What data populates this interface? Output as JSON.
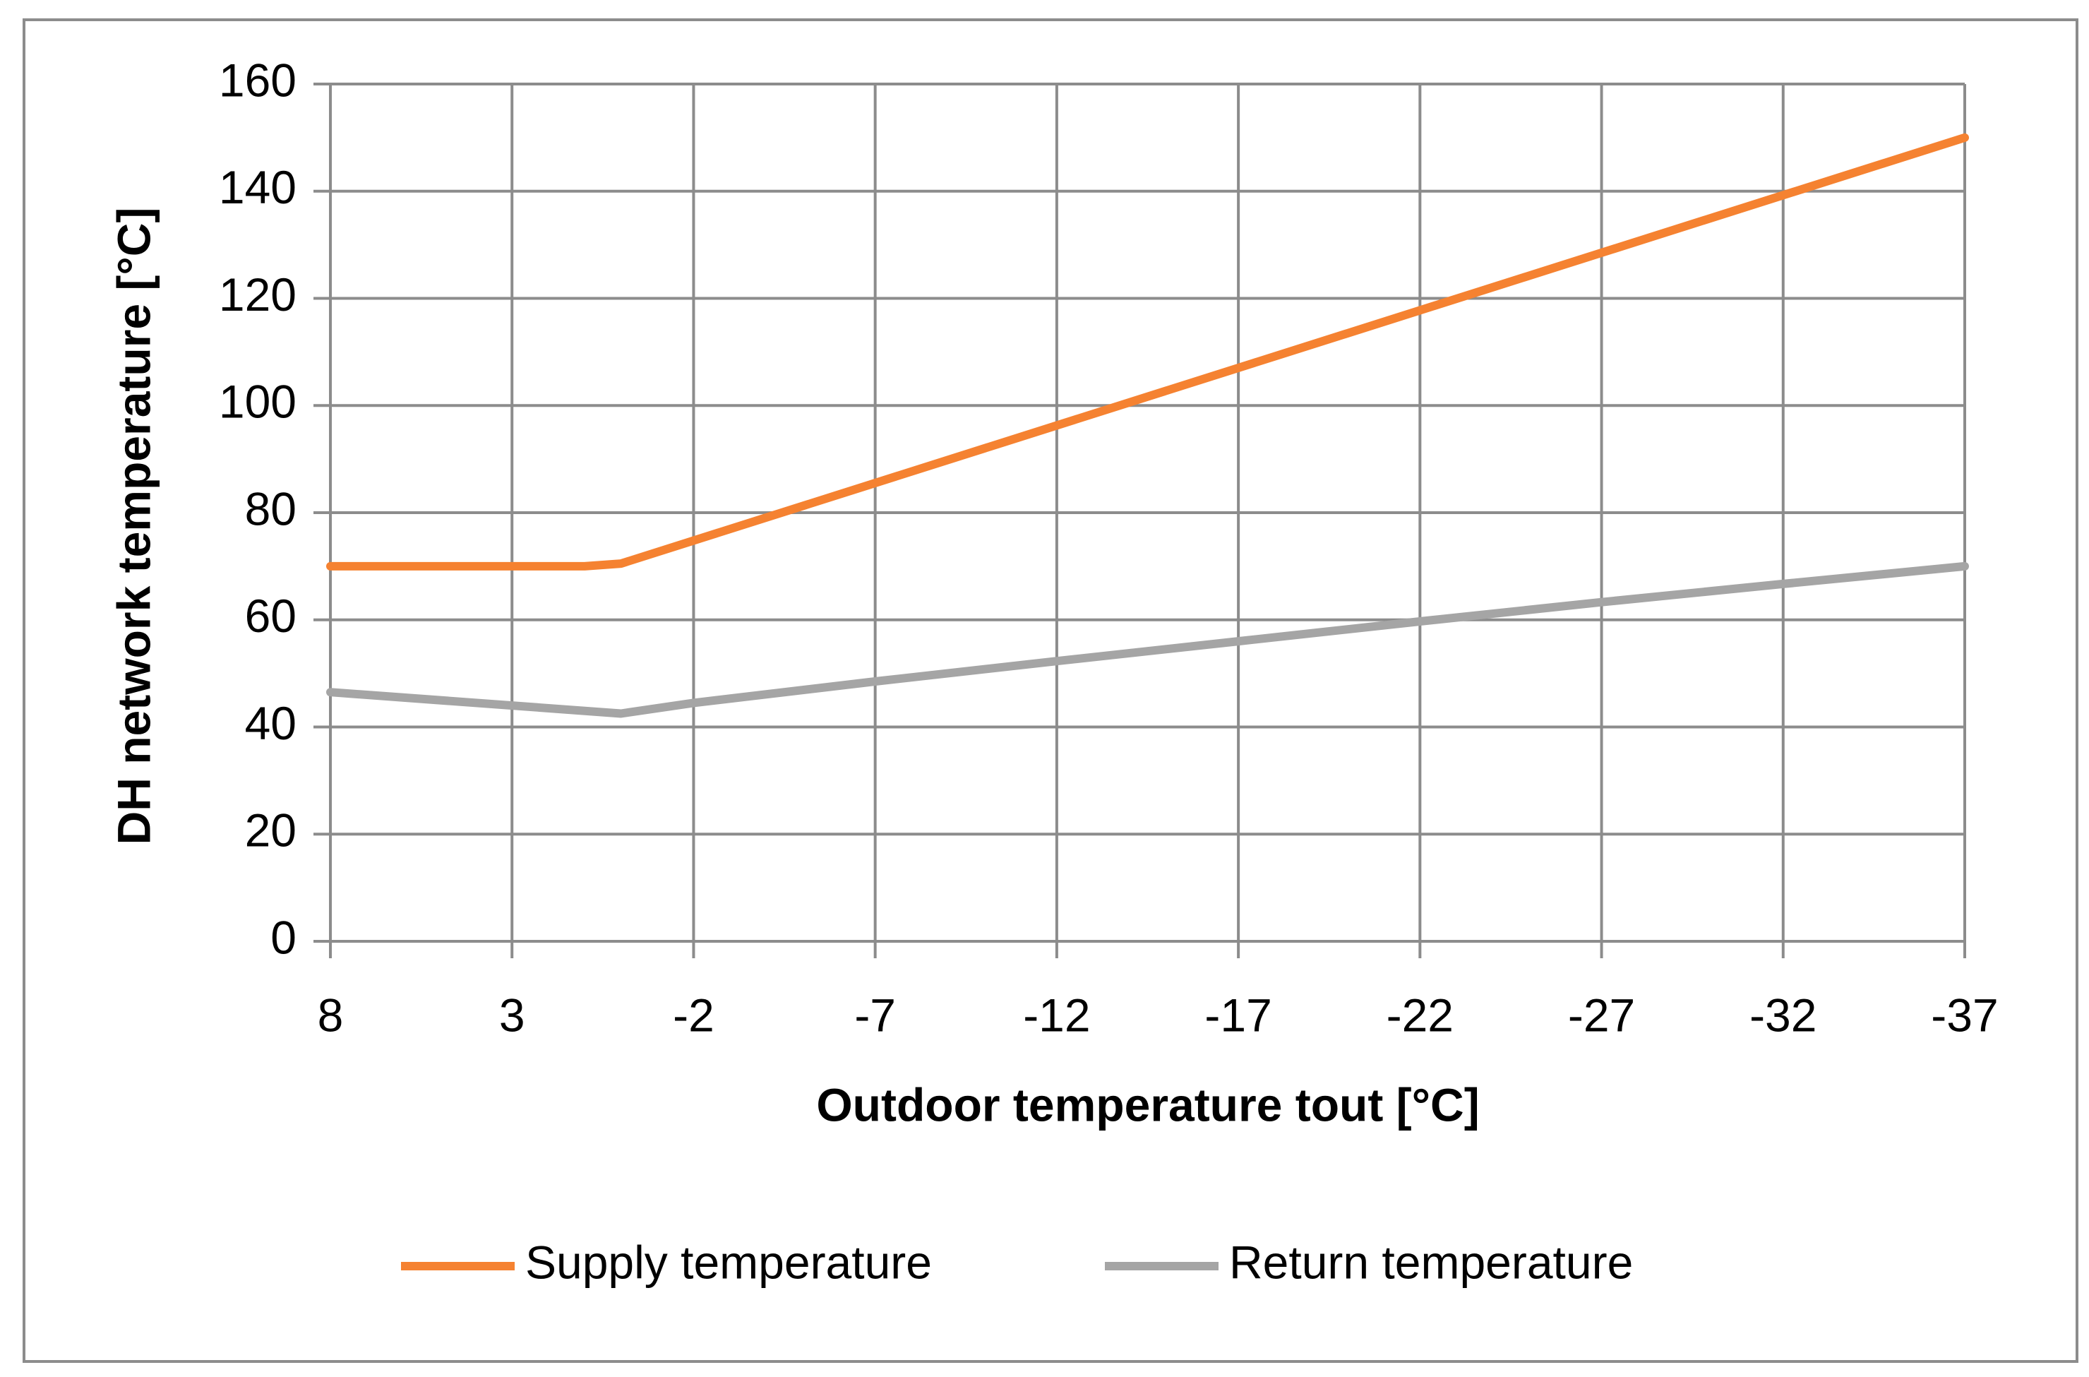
{
  "chart_data": {
    "type": "line",
    "title": "",
    "xlabel": "Outdoor temperature tout [°C]",
    "ylabel": "DH network temperature [°C]",
    "x": [
      8,
      7,
      6,
      5,
      4,
      3,
      2,
      1,
      0,
      -1,
      -2,
      -3,
      -4,
      -5,
      -6,
      -7,
      -8,
      -9,
      -10,
      -11,
      -12,
      -13,
      -14,
      -15,
      -16,
      -17,
      -18,
      -19,
      -20,
      -21,
      -22,
      -23,
      -24,
      -25,
      -26,
      -27,
      -28,
      -29,
      -30,
      -31,
      -32,
      -33,
      -34,
      -35,
      -36,
      -37
    ],
    "x_tick_labels": [
      "8",
      "3",
      "-2",
      "-7",
      "-12",
      "-17",
      "-22",
      "-27",
      "-32",
      "-37"
    ],
    "x_reversed": true,
    "xlim": [
      8,
      -37
    ],
    "ylim": [
      0,
      160
    ],
    "y_ticks": [
      "0",
      "20",
      "40",
      "60",
      "80",
      "100",
      "120",
      "140",
      "160"
    ],
    "grid": true,
    "legend_position": "bottom",
    "series": [
      {
        "name": "Supply temperature",
        "color": "#F58231",
        "points": [
          [
            8,
            70
          ],
          [
            1,
            70
          ],
          [
            0,
            70.5
          ],
          [
            -37,
            150
          ]
        ]
      },
      {
        "name": "Return temperature",
        "color": "#A5A5A5",
        "points": [
          [
            8,
            46.5
          ],
          [
            0,
            42.5
          ],
          [
            -2,
            44.5
          ],
          [
            -7,
            48.5
          ],
          [
            -12,
            52.3
          ],
          [
            -17,
            56
          ],
          [
            -22,
            59.7
          ],
          [
            -27,
            63.3
          ],
          [
            -32,
            66.7
          ],
          [
            -37,
            70
          ]
        ]
      }
    ]
  }
}
